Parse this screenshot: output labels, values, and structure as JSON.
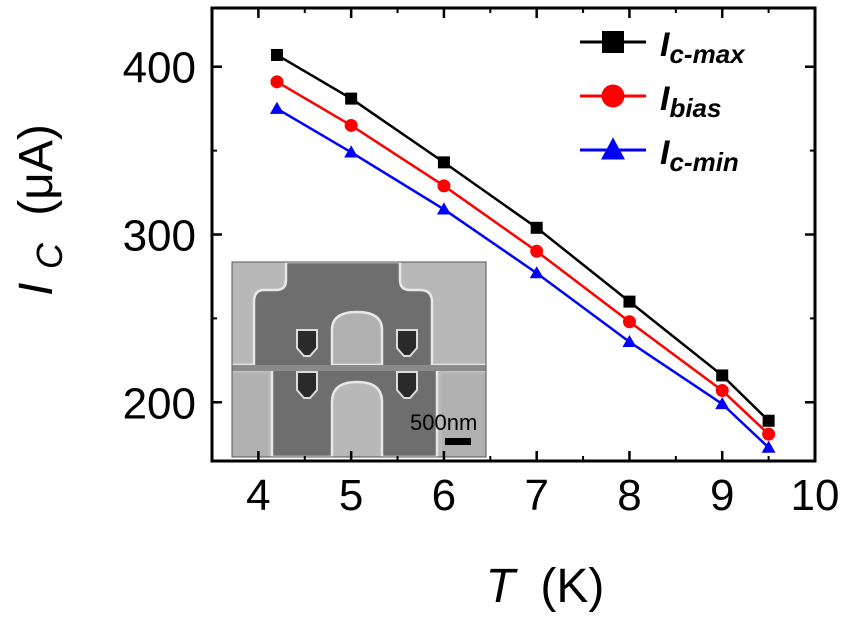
{
  "chart_data": {
    "type": "line",
    "xlabel": "T (K)",
    "xlabel_italic": "T",
    "xlabel_unit": "(K)",
    "ylabel_italic": "I",
    "ylabel_sub": "C",
    "ylabel_unit": "(μA)",
    "xlim": [
      3.5,
      10
    ],
    "ylim": [
      165,
      435
    ],
    "xticks": [
      4,
      5,
      6,
      7,
      8,
      9,
      10
    ],
    "xtick_labels": [
      "4",
      "5",
      "6",
      "7",
      "8",
      "9",
      "10"
    ],
    "yticks": [
      200,
      300,
      400
    ],
    "ytick_labels": [
      "200",
      "300",
      "400"
    ],
    "x": [
      4.2,
      5,
      6,
      7,
      8,
      9,
      9.5
    ],
    "series": [
      {
        "name": "Ic-max",
        "label_main": "I",
        "label_sub": "c-max",
        "marker": "square",
        "color": "#000000",
        "values": [
          407,
          381,
          343,
          304,
          260,
          216,
          189
        ]
      },
      {
        "name": "Ibias",
        "label_main": "I",
        "label_sub": "bias",
        "marker": "circle",
        "color": "#ff0000",
        "values": [
          391,
          365,
          329,
          290,
          248,
          207,
          181
        ]
      },
      {
        "name": "Ic-min",
        "label_main": "I",
        "label_sub": "c-min",
        "marker": "triangle",
        "color": "#0000ff",
        "values": [
          375,
          349,
          315,
          277,
          236,
          199,
          173
        ]
      }
    ],
    "legend_position": "top-right",
    "grid": false,
    "inset": {
      "type": "SEM micrograph",
      "scale_bar_label": "500nm"
    }
  }
}
